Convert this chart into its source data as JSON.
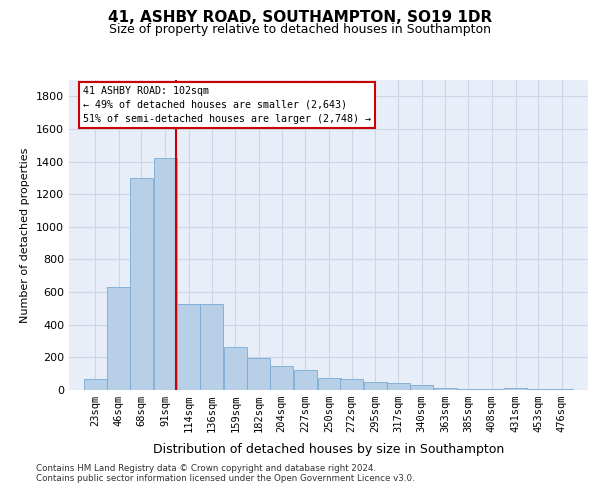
{
  "title": "41, ASHBY ROAD, SOUTHAMPTON, SO19 1DR",
  "subtitle": "Size of property relative to detached houses in Southampton",
  "xlabel": "Distribution of detached houses by size in Southampton",
  "ylabel": "Number of detached properties",
  "footer_line1": "Contains HM Land Registry data © Crown copyright and database right 2024.",
  "footer_line2": "Contains public sector information licensed under the Open Government Licence v3.0.",
  "annotation_title": "41 ASHBY ROAD: 102sqm",
  "annotation_line1": "← 49% of detached houses are smaller (2,643)",
  "annotation_line2": "51% of semi-detached houses are larger (2,748) →",
  "bar_color": "#b8cfe8",
  "bar_edge_color": "#7aaad4",
  "vline_color": "#cc0000",
  "vline_x": 102,
  "categories": [
    23,
    46,
    68,
    91,
    114,
    136,
    159,
    182,
    204,
    227,
    250,
    272,
    295,
    317,
    340,
    363,
    385,
    408,
    431,
    453,
    476
  ],
  "bin_width": 23,
  "values": [
    65,
    630,
    1300,
    1420,
    530,
    530,
    265,
    195,
    150,
    120,
    75,
    70,
    50,
    45,
    28,
    12,
    5,
    5,
    12,
    5,
    5
  ],
  "ylim": [
    0,
    1900
  ],
  "yticks": [
    0,
    200,
    400,
    600,
    800,
    1000,
    1200,
    1400,
    1600,
    1800
  ],
  "grid_color": "#ccd6e8",
  "bg_color": "#e8eef7",
  "title_fontsize": 11,
  "subtitle_fontsize": 9,
  "tick_label_fontsize": 7.5,
  "ylabel_fontsize": 8,
  "xlabel_fontsize": 9
}
